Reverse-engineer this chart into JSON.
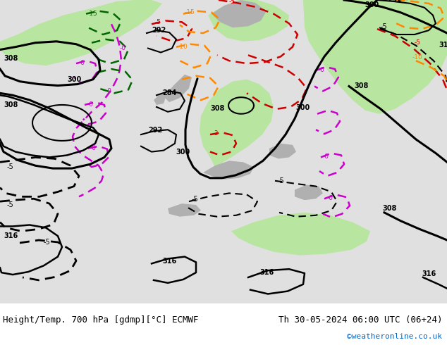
{
  "title_left": "Height/Temp. 700 hPa [gdmp][°C] ECMWF",
  "title_right": "Th 30-05-2024 06:00 UTC (06+24)",
  "credit": "©weatheronline.co.uk",
  "bg_main": "#e0e0e0",
  "green_light": "#b8e6a0",
  "black": "#000000",
  "red": "#cc0000",
  "magenta": "#cc00cc",
  "orange": "#ff8800",
  "dark_green": "#006600",
  "blue_credit": "#0066cc"
}
